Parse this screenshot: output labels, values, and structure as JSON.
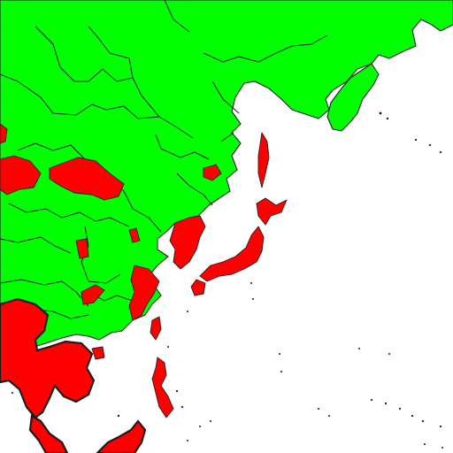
{
  "map": {
    "region": "East Asia",
    "background_color": "#ffffff",
    "colors": {
      "category_a": "#00ff00",
      "category_b": "#ff0000",
      "boundary": "#1f1f1f"
    },
    "legend": [],
    "labels": []
  }
}
